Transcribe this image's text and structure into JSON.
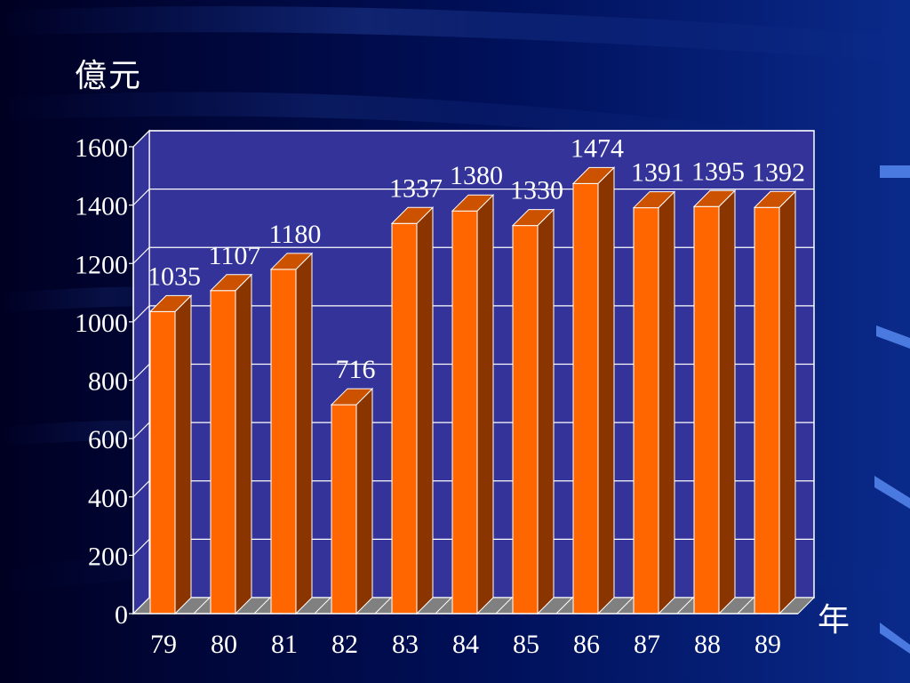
{
  "colors": {
    "background": "#000a3c",
    "plot_back_wall": "#333399",
    "bar_front": "#ff6600",
    "bar_side": "#8a3400",
    "bar_top": "#cc5200",
    "floor": "#808080",
    "text": "#ffffff"
  },
  "chart_data": {
    "type": "bar",
    "title": "",
    "ylabel": "億元",
    "xlabel": "年",
    "ylim": [
      0,
      1600
    ],
    "yticks": [
      0,
      200,
      400,
      600,
      800,
      1000,
      1200,
      1400,
      1600
    ],
    "grid": true,
    "three_d": true,
    "categories": [
      "79",
      "80",
      "81",
      "82",
      "83",
      "84",
      "85",
      "86",
      "87",
      "88",
      "89"
    ],
    "values": [
      1035,
      1107,
      1180,
      716,
      1337,
      1380,
      1330,
      1474,
      1391,
      1395,
      1392
    ],
    "data_labels": [
      "1035",
      "1107",
      "1180",
      "716",
      "1337",
      "1380",
      "1330",
      "1474",
      "1391",
      "1395",
      "1392"
    ]
  }
}
